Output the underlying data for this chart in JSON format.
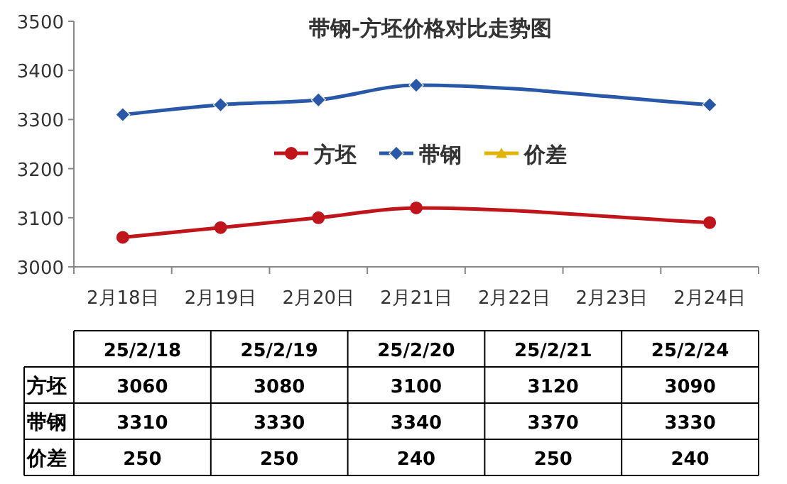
{
  "chart_data": [
    {
      "type": "line",
      "title": "带钢-方坯价格对比走势图",
      "categories": [
        "2月18日",
        "2月19日",
        "2月20日",
        "2月21日",
        "2月22日",
        "2月23日",
        "2月24日"
      ],
      "ylim": [
        3000,
        3500
      ],
      "yticks": [
        3000,
        3100,
        3200,
        3300,
        3400,
        3500
      ],
      "grid": false,
      "legend": "center",
      "line_style": "solid",
      "series": [
        {
          "name": "方坯",
          "color": "#c0151b",
          "marker": "circle",
          "x": [
            "2月18日",
            "2月19日",
            "2月20日",
            "2月21日",
            "2月24日"
          ],
          "values": [
            3060,
            3080,
            3100,
            3120,
            3090
          ]
        },
        {
          "name": "带钢",
          "color": "#2958a8",
          "marker": "diamond",
          "x": [
            "2月18日",
            "2月19日",
            "2月20日",
            "2月21日",
            "2月24日"
          ],
          "values": [
            3310,
            3330,
            3340,
            3370,
            3330
          ]
        },
        {
          "name": "价差",
          "color": "#e0b400",
          "marker": "triangle",
          "values": [
            null,
            null,
            null,
            null,
            null,
            null,
            null
          ]
        }
      ]
    },
    {
      "type": "heatmap",
      "categories": [
        "25/2/18",
        "25/2/19",
        "25/2/20",
        "25/2/21",
        "25/2/24"
      ],
      "y_categories": [
        "方坯",
        "带钢",
        "价差"
      ],
      "cells": [
        [
          3060,
          3080,
          3100,
          3120,
          3090
        ],
        [
          3310,
          3330,
          3340,
          3370,
          3330
        ],
        [
          250,
          250,
          240,
          250,
          240
        ]
      ],
      "data_labels": true
    }
  ]
}
